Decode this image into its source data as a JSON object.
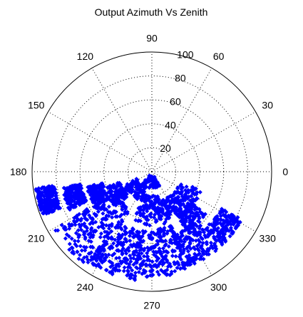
{
  "chart_data": {
    "type": "scatter",
    "coordinate_system": "polar",
    "title": "Output Azimuth Vs Zenith",
    "angle_unit": "degrees",
    "angle_ticks": [
      0,
      30,
      60,
      90,
      120,
      150,
      180,
      210,
      240,
      270,
      300,
      330
    ],
    "radial_ticks": [
      20,
      40,
      60,
      80,
      100
    ],
    "rlim": [
      0,
      100
    ],
    "grid": true,
    "marker": "diamond",
    "point_color": "#0000ff",
    "series": [
      {
        "clusters": [
          {
            "theta": [
              188,
              202
            ],
            "r": [
              82,
              98
            ],
            "count": 240
          },
          {
            "theta": [
              190,
              205
            ],
            "r": [
              60,
              76
            ],
            "count": 180
          },
          {
            "theta": [
              193,
              212
            ],
            "r": [
              42,
              56
            ],
            "count": 160
          },
          {
            "theta": [
              198,
              225
            ],
            "r": [
              28,
              40
            ],
            "count": 120
          },
          {
            "theta": [
              205,
              250
            ],
            "r": [
              14,
              26
            ],
            "count": 100
          },
          {
            "theta": [
              230,
              300
            ],
            "r": [
              4,
              14
            ],
            "count": 60
          },
          {
            "theta": [
              210,
              240
            ],
            "r": [
              35,
              95
            ],
            "count": 240
          },
          {
            "theta": [
              235,
              262
            ],
            "r": [
              50,
              92
            ],
            "count": 220
          },
          {
            "theta": [
              262,
              290
            ],
            "r": [
              48,
              88
            ],
            "count": 200
          },
          {
            "theta": [
              288,
              312
            ],
            "r": [
              55,
              85
            ],
            "count": 170
          },
          {
            "theta": [
              312,
              332
            ],
            "r": [
              65,
              85
            ],
            "count": 150
          },
          {
            "theta": [
              300,
              322
            ],
            "r": [
              42,
              58
            ],
            "count": 120
          },
          {
            "theta": [
              285,
              310
            ],
            "r": [
              25,
              42
            ],
            "count": 100
          },
          {
            "theta": [
              250,
              285
            ],
            "r": [
              20,
              45
            ],
            "count": 120
          },
          {
            "theta": [
              310,
              340
            ],
            "r": [
              25,
              45
            ],
            "count": 90
          }
        ]
      }
    ]
  }
}
